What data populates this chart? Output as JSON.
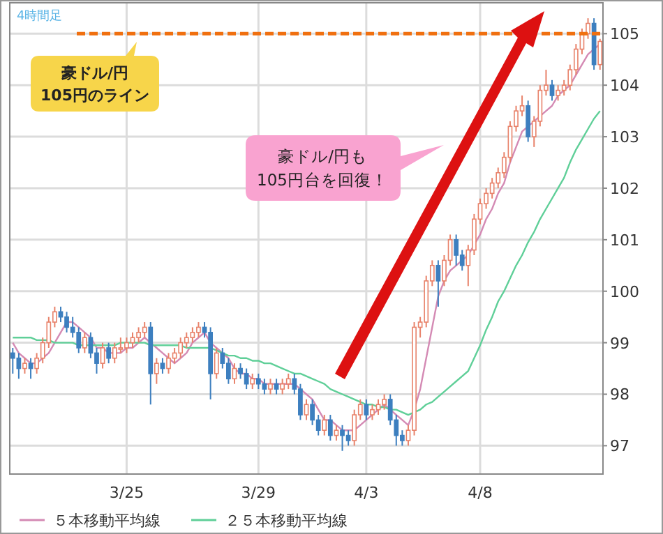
{
  "chart_data": {
    "type": "candlestick",
    "title": "4時間足",
    "categories": [
      null,
      null,
      null,
      null,
      null,
      null,
      null,
      null,
      null,
      null,
      null,
      null,
      null,
      null,
      null,
      null,
      null,
      null,
      null,
      "3/25",
      null,
      null,
      null,
      null,
      null,
      null,
      null,
      null,
      null,
      null,
      null,
      null,
      null,
      null,
      null,
      null,
      null,
      null,
      null,
      null,
      null,
      "3/29",
      null,
      null,
      null,
      null,
      null,
      null,
      null,
      null,
      null,
      null,
      null,
      null,
      null,
      null,
      null,
      null,
      null,
      "4/3",
      null,
      null,
      null,
      null,
      null,
      null,
      null,
      null,
      null,
      null,
      null,
      null,
      null,
      null,
      null,
      null,
      null,
      null,
      "4/8",
      null,
      null,
      null,
      null,
      null,
      null,
      null,
      null,
      null,
      null,
      null,
      null,
      null,
      null,
      null,
      null,
      null,
      null,
      null,
      null
    ],
    "ohlc": [
      [
        98.8,
        98.9,
        98.4,
        98.7
      ],
      [
        98.7,
        98.8,
        98.3,
        98.5
      ],
      [
        98.5,
        98.7,
        98.4,
        98.6
      ],
      [
        98.6,
        98.7,
        98.3,
        98.5
      ],
      [
        98.5,
        98.8,
        98.4,
        98.7
      ],
      [
        98.7,
        99.1,
        98.6,
        99.0
      ],
      [
        99.0,
        99.5,
        98.9,
        99.4
      ],
      [
        99.4,
        99.7,
        99.3,
        99.6
      ],
      [
        99.6,
        99.7,
        99.4,
        99.5
      ],
      [
        99.5,
        99.6,
        99.2,
        99.3
      ],
      [
        99.3,
        99.5,
        99.1,
        99.2
      ],
      [
        99.2,
        99.3,
        98.8,
        98.9
      ],
      [
        98.9,
        99.2,
        98.8,
        99.1
      ],
      [
        99.1,
        99.2,
        98.7,
        98.8
      ],
      [
        98.8,
        98.9,
        98.4,
        98.6
      ],
      [
        98.6,
        99.0,
        98.5,
        98.9
      ],
      [
        98.9,
        99.0,
        98.6,
        98.7
      ],
      [
        98.7,
        99.0,
        98.6,
        98.9
      ],
      [
        98.9,
        99.1,
        98.8,
        98.9
      ],
      [
        98.9,
        99.1,
        98.8,
        99.0
      ],
      [
        99.0,
        99.2,
        98.9,
        99.1
      ],
      [
        99.1,
        99.3,
        99.0,
        99.2
      ],
      [
        99.2,
        99.4,
        99.1,
        99.3
      ],
      [
        99.3,
        99.4,
        97.8,
        98.4
      ],
      [
        98.4,
        98.7,
        98.2,
        98.6
      ],
      [
        98.6,
        98.7,
        98.4,
        98.5
      ],
      [
        98.5,
        98.8,
        98.4,
        98.7
      ],
      [
        98.7,
        98.9,
        98.6,
        98.8
      ],
      [
        98.8,
        99.1,
        98.7,
        99.0
      ],
      [
        99.0,
        99.2,
        98.9,
        99.1
      ],
      [
        99.1,
        99.3,
        99.0,
        99.2
      ],
      [
        99.2,
        99.4,
        99.1,
        99.3
      ],
      [
        99.3,
        99.4,
        99.1,
        99.2
      ],
      [
        99.2,
        99.3,
        97.9,
        98.4
      ],
      [
        98.4,
        98.9,
        98.3,
        98.8
      ],
      [
        98.8,
        98.9,
        98.5,
        98.6
      ],
      [
        98.6,
        98.7,
        98.2,
        98.3
      ],
      [
        98.3,
        98.6,
        98.2,
        98.5
      ],
      [
        98.5,
        98.6,
        98.3,
        98.4
      ],
      [
        98.4,
        98.5,
        98.1,
        98.2
      ],
      [
        98.2,
        98.4,
        98.1,
        98.3
      ],
      [
        98.3,
        98.4,
        98.1,
        98.2
      ],
      [
        98.2,
        98.3,
        98.0,
        98.1
      ],
      [
        98.1,
        98.3,
        98.0,
        98.2
      ],
      [
        98.2,
        98.3,
        98.0,
        98.1
      ],
      [
        98.1,
        98.3,
        98.0,
        98.2
      ],
      [
        98.2,
        98.4,
        98.1,
        98.3
      ],
      [
        98.3,
        98.4,
        98.0,
        98.1
      ],
      [
        98.1,
        98.2,
        97.5,
        97.6
      ],
      [
        97.6,
        97.9,
        97.5,
        97.8
      ],
      [
        97.8,
        97.9,
        97.4,
        97.5
      ],
      [
        97.5,
        97.6,
        97.2,
        97.3
      ],
      [
        97.3,
        97.6,
        97.2,
        97.5
      ],
      [
        97.5,
        97.6,
        97.1,
        97.2
      ],
      [
        97.2,
        97.4,
        97.1,
        97.3
      ],
      [
        97.3,
        97.4,
        96.9,
        97.2
      ],
      [
        97.2,
        97.3,
        97.0,
        97.1
      ],
      [
        97.1,
        97.7,
        97.0,
        97.6
      ],
      [
        97.6,
        97.9,
        97.5,
        97.8
      ],
      [
        97.8,
        97.9,
        97.5,
        97.6
      ],
      [
        97.6,
        97.8,
        97.5,
        97.7
      ],
      [
        97.7,
        97.9,
        97.6,
        97.8
      ],
      [
        97.8,
        98.0,
        97.7,
        97.9
      ],
      [
        97.9,
        98.0,
        97.4,
        97.5
      ],
      [
        97.5,
        97.6,
        97.0,
        97.2
      ],
      [
        97.2,
        97.3,
        97.0,
        97.1
      ],
      [
        97.1,
        97.4,
        97.0,
        97.3
      ],
      [
        97.3,
        99.4,
        97.2,
        99.3
      ],
      [
        99.3,
        99.5,
        99.1,
        99.4
      ],
      [
        99.4,
        100.3,
        99.3,
        100.2
      ],
      [
        100.2,
        100.6,
        100.1,
        100.5
      ],
      [
        100.5,
        100.6,
        99.7,
        100.2
      ],
      [
        100.2,
        100.7,
        100.1,
        100.6
      ],
      [
        100.6,
        101.1,
        100.5,
        101.0
      ],
      [
        101.0,
        101.1,
        100.5,
        100.7
      ],
      [
        100.7,
        100.8,
        100.4,
        100.5
      ],
      [
        100.5,
        100.9,
        100.1,
        100.8
      ],
      [
        100.8,
        101.5,
        100.7,
        101.4
      ],
      [
        101.4,
        101.8,
        101.3,
        101.7
      ],
      [
        101.7,
        102.0,
        101.6,
        101.9
      ],
      [
        101.9,
        102.2,
        101.8,
        102.1
      ],
      [
        102.1,
        102.4,
        102.0,
        102.3
      ],
      [
        102.3,
        102.7,
        102.2,
        102.6
      ],
      [
        102.6,
        103.3,
        102.5,
        103.2
      ],
      [
        103.2,
        103.6,
        103.1,
        103.5
      ],
      [
        103.5,
        103.8,
        103.4,
        103.6
      ],
      [
        103.6,
        103.7,
        102.9,
        103.0
      ],
      [
        103.0,
        103.4,
        102.8,
        103.3
      ],
      [
        103.3,
        104.0,
        103.2,
        103.9
      ],
      [
        103.9,
        104.3,
        103.8,
        104.0
      ],
      [
        104.0,
        104.1,
        103.7,
        103.8
      ],
      [
        103.8,
        104.0,
        103.7,
        103.9
      ],
      [
        103.9,
        104.1,
        103.8,
        104.0
      ],
      [
        104.0,
        104.4,
        103.9,
        104.3
      ],
      [
        104.3,
        104.8,
        104.2,
        104.7
      ],
      [
        104.7,
        105.1,
        104.6,
        105.0
      ],
      [
        105.0,
        105.3,
        104.9,
        105.2
      ],
      [
        105.2,
        105.3,
        104.3,
        104.4
      ],
      [
        104.4,
        104.9,
        104.3,
        104.85
      ]
    ],
    "series": [
      {
        "type": "line",
        "name": "５本移動平均線",
        "color": "#d48ab4",
        "values": [
          99.0,
          98.8,
          98.7,
          98.6,
          98.6,
          98.7,
          98.8,
          99.0,
          99.2,
          99.4,
          99.4,
          99.3,
          99.2,
          99.1,
          98.9,
          98.9,
          98.8,
          98.8,
          98.8,
          98.9,
          98.9,
          99.0,
          99.1,
          99.0,
          98.9,
          98.8,
          98.7,
          98.6,
          98.7,
          98.8,
          99.0,
          99.1,
          99.2,
          99.0,
          98.9,
          98.8,
          98.7,
          98.5,
          98.4,
          98.4,
          98.3,
          98.3,
          98.2,
          98.2,
          98.2,
          98.2,
          98.2,
          98.2,
          98.1,
          98.0,
          97.9,
          97.7,
          97.5,
          97.5,
          97.4,
          97.3,
          97.3,
          97.3,
          97.4,
          97.5,
          97.6,
          97.7,
          97.8,
          97.7,
          97.6,
          97.5,
          97.4,
          97.7,
          98.1,
          98.7,
          99.3,
          99.9,
          100.2,
          100.4,
          100.5,
          100.6,
          100.7,
          100.9,
          101.1,
          101.4,
          101.6,
          101.9,
          102.1,
          102.5,
          102.8,
          103.1,
          103.2,
          103.3,
          103.4,
          103.5,
          103.6,
          103.8,
          103.9,
          104.0,
          104.2,
          104.4,
          104.6,
          104.7,
          104.8
        ]
      },
      {
        "type": "line",
        "name": "２５本移動平均線",
        "color": "#5fcf98",
        "values": [
          99.1,
          99.1,
          99.1,
          99.1,
          99.05,
          99.05,
          99.05,
          99.0,
          99.0,
          99.0,
          99.0,
          98.95,
          98.95,
          98.95,
          98.95,
          98.95,
          98.95,
          98.95,
          99.0,
          99.0,
          99.0,
          99.0,
          99.0,
          98.95,
          98.95,
          98.95,
          98.95,
          98.95,
          98.95,
          98.9,
          98.9,
          98.9,
          98.9,
          98.9,
          98.85,
          98.8,
          98.75,
          98.75,
          98.7,
          98.7,
          98.65,
          98.65,
          98.6,
          98.6,
          98.55,
          98.5,
          98.45,
          98.4,
          98.4,
          98.35,
          98.3,
          98.25,
          98.2,
          98.1,
          98.05,
          98.0,
          97.95,
          97.9,
          97.85,
          97.8,
          97.8,
          97.75,
          97.75,
          97.7,
          97.7,
          97.65,
          97.6,
          97.65,
          97.7,
          97.8,
          97.85,
          97.95,
          98.05,
          98.15,
          98.25,
          98.35,
          98.45,
          98.7,
          98.95,
          99.25,
          99.5,
          99.8,
          100.0,
          100.25,
          100.5,
          100.7,
          100.95,
          101.15,
          101.4,
          101.6,
          101.8,
          102.0,
          102.2,
          102.5,
          102.75,
          102.95,
          103.15,
          103.35,
          103.5
        ]
      }
    ],
    "ylim": [
      96.45,
      105.6
    ],
    "yticks": [
      97,
      98,
      99,
      100,
      101,
      102,
      103,
      104,
      105
    ],
    "grid": true,
    "legend": "bottom",
    "ref_lines": [
      {
        "axis": "y",
        "value": 105,
        "label": "豪ドル/円\n105円のライン",
        "color": "#f07010",
        "line_style": "dashed"
      }
    ],
    "annotations": [
      "豪ドル/円も\n105円台を回復！"
    ]
  }
}
